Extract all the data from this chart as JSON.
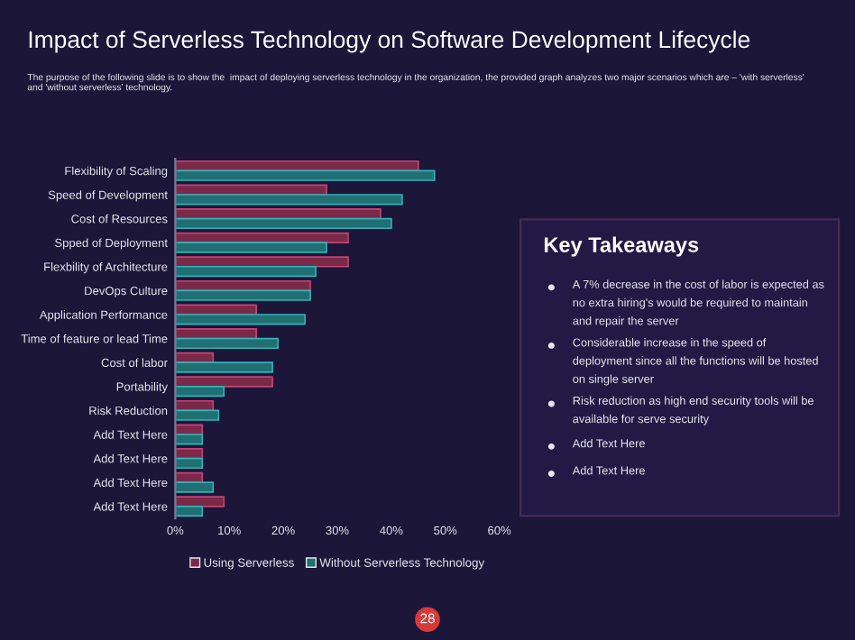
{
  "chart_data": [
    {
      "type": "bar",
      "orientation": "horizontal",
      "title": "Impact of Serverless Technology on Software Development Lifecycle",
      "subtitle": "The purpose of the following slide is to show the  impact of deploying serverless technology in the organization, the provided graph analyzes two major scenarios which are – 'with serverless' and 'without serverless' technology.",
      "categories": [
        "Flexibility of Scaling",
        "Speed of Development",
        "Cost of Resources",
        "Spped of Deployment",
        "Flexbility of Architecture",
        "DevOps Culture",
        "Application Performance",
        "Time of feature or lead Time",
        "Cost of labor",
        "Portability",
        "Risk Reduction",
        "Add Text Here",
        "Add Text Here",
        "Add Text Here",
        "Add Text Here"
      ],
      "series": [
        {
          "name": "Using Serverless",
          "color": "#7a2a48",
          "values": [
            45,
            28,
            38,
            32,
            32,
            25,
            15,
            15,
            7,
            18,
            7,
            5,
            5,
            5,
            9
          ]
        },
        {
          "name": "Without Serverless Technology",
          "color": "#1f6f73",
          "values": [
            48,
            42,
            40,
            28,
            26,
            25,
            24,
            19,
            18,
            9,
            8,
            5,
            5,
            7,
            5
          ]
        }
      ],
      "xlim": [
        0,
        60
      ],
      "xticks": [
        {
          "value": 0,
          "label": "0%"
        },
        {
          "value": 10,
          "label": "10%"
        },
        {
          "value": 20,
          "label": "20%"
        },
        {
          "value": 30,
          "label": "30%"
        },
        {
          "value": 40,
          "label": "40%"
        },
        {
          "value": 50,
          "label": "50%"
        },
        {
          "value": 60,
          "label": "60%"
        }
      ],
      "grid": false,
      "legend": "bottom",
      "annotations": [
        "28"
      ]
    },
    {
      "type": "other",
      "title": "Key Takeaways",
      "annotations": [
        "A 7% decrease in the cost of labor is expected as no extra hiring's would be required to maintain and repair the server",
        "Considerable increase in the speed of deployment since all the functions will be hosted on single server",
        "Risk reduction as high end security tools will be available for serve security",
        "Add Text Here",
        "Add Text Here"
      ]
    }
  ]
}
